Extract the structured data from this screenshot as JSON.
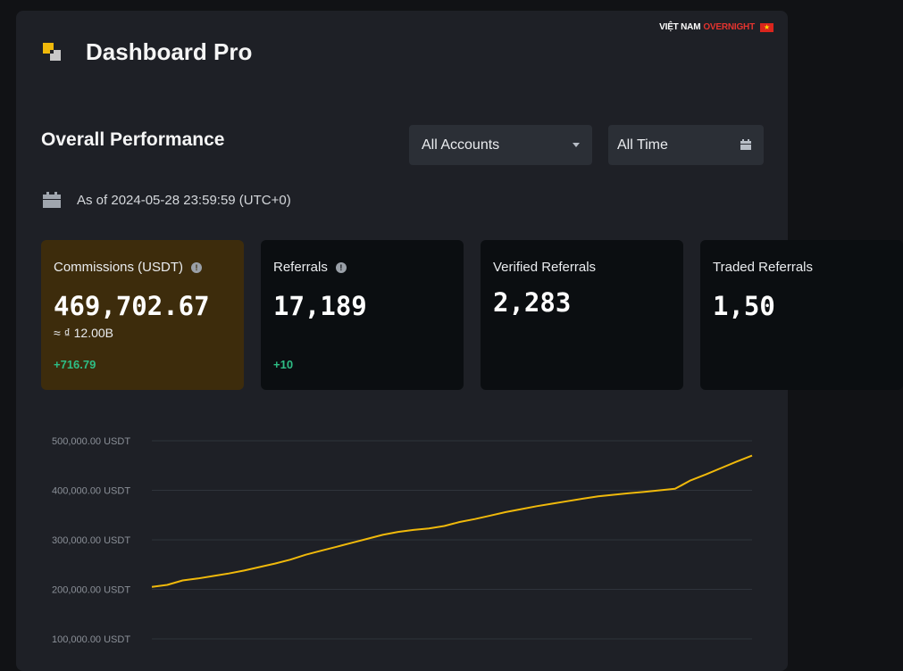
{
  "watermark": {
    "part1": "VIỆT NAM",
    "part2": "OVERNIGHT",
    "flag": "★"
  },
  "header": {
    "title": "Dashboard Pro",
    "logo": "binance-logo-icon"
  },
  "section": {
    "title": "Overall Performance",
    "account_filter": {
      "value": "All Accounts",
      "options": [
        "All Accounts"
      ]
    },
    "time_filter": {
      "value": "All Time"
    },
    "as_of": "As of 2024-05-28 23:59:59 (UTC+0)"
  },
  "cards": [
    {
      "label": "Commissions (USDT)",
      "value": "469,702.67",
      "approx": "≈ ₫ 12.00B",
      "delta": "+716.79",
      "info": true,
      "highlight": true
    },
    {
      "label": "Referrals",
      "value": "17,189",
      "delta": "+10",
      "info": true
    },
    {
      "label": "Verified Referrals",
      "value": "2,283"
    },
    {
      "label": "Traded Referrals",
      "value": "1,50"
    }
  ],
  "colors": {
    "accent": "#f0b90b",
    "positive": "#2ebd85",
    "card_highlight": "#3d2c0c",
    "line": "#f0b90b"
  },
  "chart_data": {
    "type": "line",
    "y_tick_labels": [
      "500,000.00 USDT",
      "400,000.00 USDT",
      "300,000.00 USDT",
      "200,000.00 USDT",
      "100,000.00 USDT"
    ],
    "y_ticks": [
      500000,
      400000,
      300000,
      200000,
      100000
    ],
    "ylim": [
      100000,
      500000
    ],
    "grid": true,
    "series": [
      {
        "values": [
          205000,
          209000,
          218000,
          222000,
          227000,
          232000,
          238000,
          245000,
          252000,
          260000,
          270000,
          278000,
          286000,
          294000,
          302000,
          310000,
          316000,
          320000,
          323000,
          328000,
          336000,
          342000,
          349000,
          356000,
          362000,
          368000,
          373000,
          378000,
          383000,
          388000,
          391000,
          394000,
          397000,
          400000,
          403000,
          420000,
          432000,
          445000,
          458000,
          470000
        ]
      }
    ]
  }
}
